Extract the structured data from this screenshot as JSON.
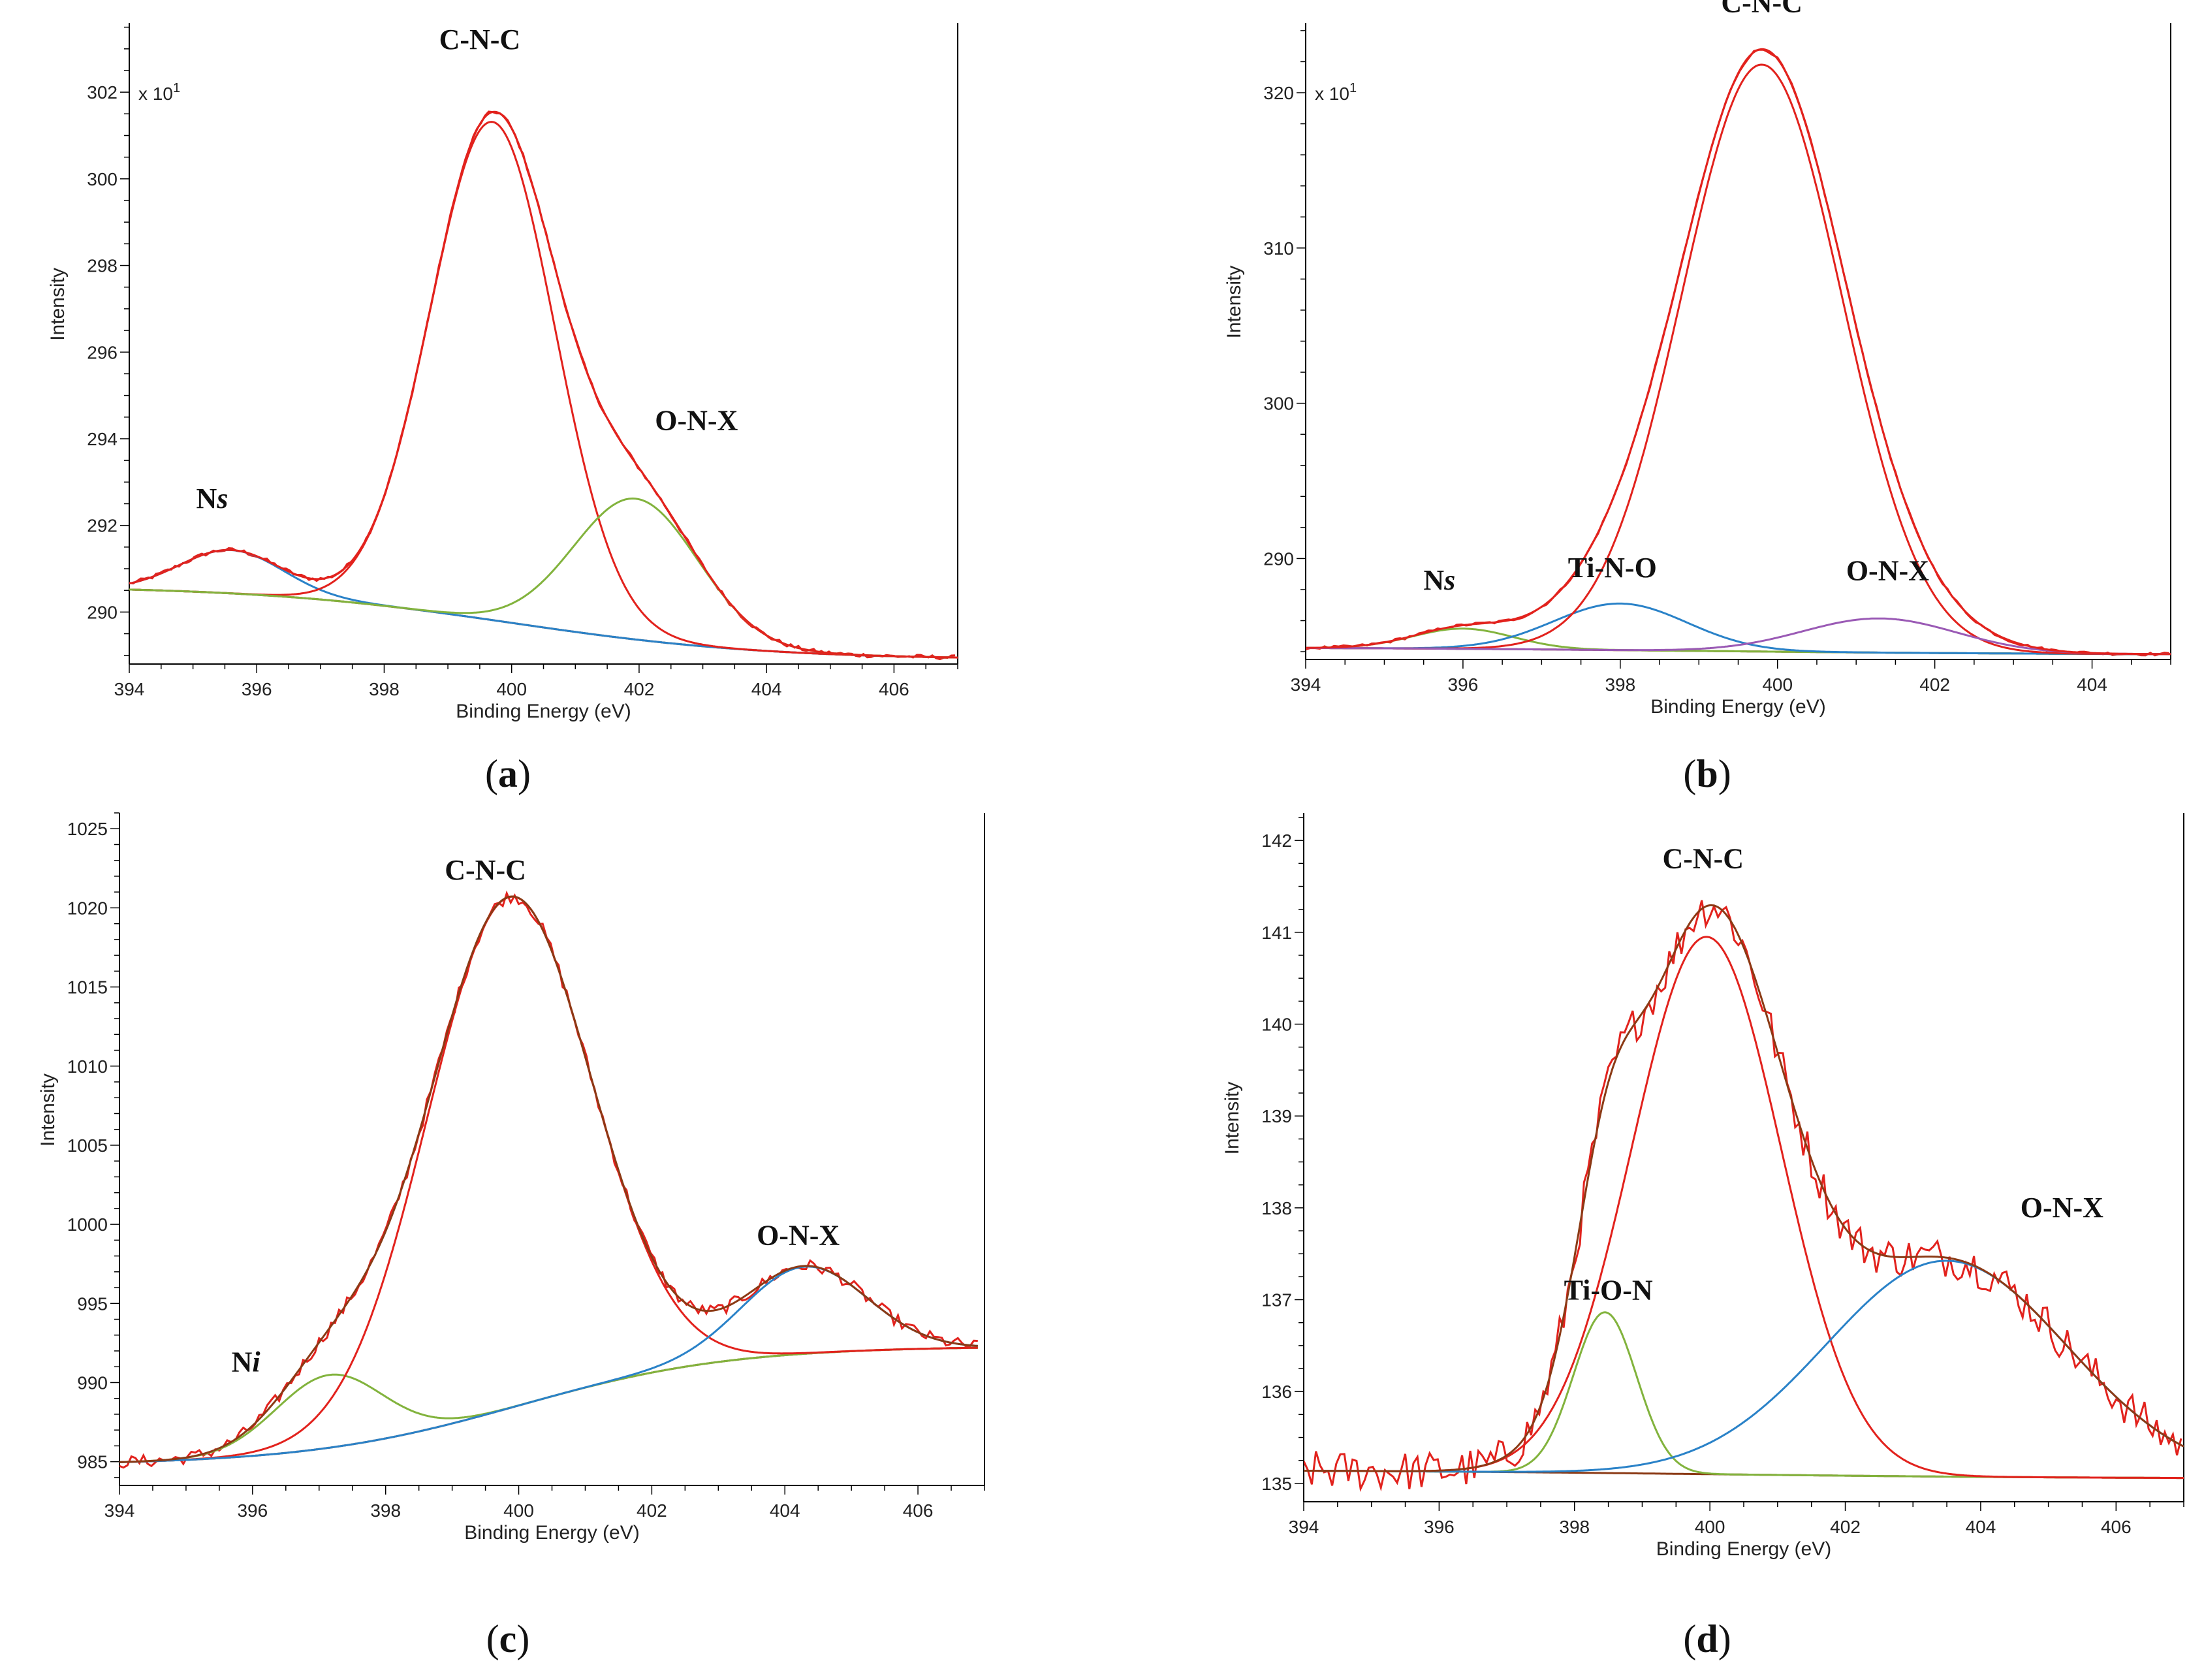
{
  "chart_data": [
    {
      "type": "line",
      "panel": "a",
      "xlabel": "Binding Energy (eV)",
      "ylabel": "Intensity",
      "multiplier": "x 10",
      "multiplier_exp": "1",
      "xlim": [
        394,
        407
      ],
      "ylim": [
        288.8,
        303.6
      ],
      "xticks": [
        394,
        396,
        398,
        400,
        402,
        404,
        406
      ],
      "yticks": [
        290,
        292,
        294,
        296,
        298,
        300,
        302
      ],
      "x_reversed": false,
      "labels": [
        {
          "parts": [
            {
              "t": "C-N-C"
            }
          ],
          "x": 399.5,
          "y": 303.0
        },
        {
          "parts": [
            {
              "t": "O-N-X"
            }
          ],
          "x": 402.9,
          "y": 294.2
        },
        {
          "parts": [
            {
              "t": "N"
            },
            {
              "t": "s",
              "i": true
            }
          ],
          "x": 395.3,
          "y": 292.4
        }
      ],
      "background": {
        "start": 290.6,
        "end": 288.9,
        "center": 400,
        "width": 2.0
      },
      "components": [
        {
          "name": "Ns",
          "color": "#2a82c8",
          "center": 395.6,
          "height": 1.0,
          "fwhm": 1.9
        },
        {
          "name": "C-N-C",
          "color": "#e2221d",
          "center": 399.7,
          "height": 11.5,
          "fwhm": 2.3
        },
        {
          "name": "O-N-X",
          "color": "#82b33d",
          "center": 401.95,
          "height": 3.25,
          "fwhm": 2.3
        }
      ],
      "envelope_color": "#e2221d",
      "raw_color": "#e2221d",
      "noise": 0.05
    },
    {
      "type": "line",
      "panel": "b",
      "xlabel": "Binding Energy (eV)",
      "ylabel": "Intensity",
      "multiplier": "x 10",
      "multiplier_exp": "1",
      "xlim": [
        394,
        405
      ],
      "ylim": [
        283.5,
        324.5
      ],
      "xticks": [
        394,
        396,
        398,
        400,
        402,
        404
      ],
      "yticks": [
        290,
        300,
        310,
        320
      ],
      "x_reversed": false,
      "labels": [
        {
          "parts": [
            {
              "t": "C-N-C"
            }
          ],
          "x": 399.8,
          "y": 325.2
        },
        {
          "parts": [
            {
              "t": "Ti-N-O"
            }
          ],
          "x": 397.9,
          "y": 288.8
        },
        {
          "parts": [
            {
              "t": "N"
            },
            {
              "t": "s",
              "i": true
            }
          ],
          "x": 395.7,
          "y": 288.0
        },
        {
          "parts": [
            {
              "t": "O-N-X"
            }
          ],
          "x": 401.4,
          "y": 288.6
        }
      ],
      "background": {
        "start": 284.3,
        "end": 283.8,
        "center": 399,
        "width": 2.5
      },
      "components": [
        {
          "name": "Ns",
          "color": "#82b33d",
          "center": 396.0,
          "height": 1.3,
          "fwhm": 1.5
        },
        {
          "name": "Ti-N-O",
          "color": "#2a82c8",
          "center": 398.0,
          "height": 3.0,
          "fwhm": 2.0
        },
        {
          "name": "C-N-C",
          "color": "#e2221d",
          "center": 399.8,
          "height": 37.8,
          "fwhm": 2.4
        },
        {
          "name": "O-N-X",
          "color": "#9a5ab5",
          "center": 401.3,
          "height": 2.2,
          "fwhm": 2.3
        }
      ],
      "envelope_color": "#e2221d",
      "raw_color": "#e2221d",
      "noise": 0.1
    },
    {
      "type": "line",
      "panel": "c",
      "xlabel": "Binding Energy (eV)",
      "ylabel": "Intensity",
      "multiplier": "",
      "multiplier_exp": "",
      "xlim": [
        394,
        407
      ],
      "ylim": [
        983.5,
        1026
      ],
      "xticks": [
        394,
        396,
        398,
        400,
        402,
        404,
        406
      ],
      "yticks": [
        985,
        990,
        995,
        1000,
        1005,
        1010,
        1015,
        1020,
        1025
      ],
      "x_reversed": false,
      "labels": [
        {
          "parts": [
            {
              "t": "C-N-C"
            }
          ],
          "x": 399.5,
          "y": 1021.8
        },
        {
          "parts": [
            {
              "t": "O-N-X"
            }
          ],
          "x": 404.2,
          "y": 998.7
        },
        {
          "parts": [
            {
              "t": "N"
            },
            {
              "t": "i",
              "i": true
            }
          ],
          "x": 395.9,
          "y": 990.7
        }
      ],
      "background": {
        "start": 984.8,
        "end": 992.3,
        "center": 400,
        "width": 1.6
      },
      "components": [
        {
          "name": "Ni",
          "color": "#82b33d",
          "center": 397.15,
          "height": 4.6,
          "fwhm": 1.9
        },
        {
          "name": "C-N-C",
          "color": "#e2221d",
          "center": 399.85,
          "height": 32.3,
          "fwhm": 2.9
        },
        {
          "name": "O-N-X",
          "color": "#2a82c8",
          "center": 404.3,
          "height": 5.5,
          "fwhm": 2.2
        }
      ],
      "envelope_color": "#8b3a15",
      "raw_color": "#e2221d",
      "noise": 0.4
    },
    {
      "type": "line",
      "panel": "d",
      "xlabel": "Binding Energy (eV)",
      "ylabel": "Intensity",
      "multiplier": "",
      "multiplier_exp": "",
      "xlim": [
        394,
        407
      ],
      "ylim": [
        134.8,
        142.3
      ],
      "xticks": [
        394,
        396,
        398,
        400,
        402,
        404,
        406
      ],
      "yticks": [
        135,
        136,
        137,
        138,
        139,
        140,
        141,
        142
      ],
      "x_reversed": false,
      "labels": [
        {
          "parts": [
            {
              "t": "C-N-C"
            }
          ],
          "x": 399.9,
          "y": 141.7
        },
        {
          "parts": [
            {
              "t": "Ti-O-N"
            }
          ],
          "x": 398.5,
          "y": 137.0
        },
        {
          "parts": [
            {
              "t": "O-N-X"
            }
          ],
          "x": 405.2,
          "y": 137.9
        }
      ],
      "background": {
        "start": 135.15,
        "end": 135.05,
        "center": 400,
        "width": 3.0
      },
      "components": [
        {
          "name": "Ti-O-N",
          "color": "#82b33d",
          "center": 398.45,
          "height": 1.75,
          "fwhm": 1.1
        },
        {
          "name": "C-N-C",
          "color": "#e2221d",
          "center": 399.95,
          "height": 5.85,
          "fwhm": 2.6
        },
        {
          "name": "O-N-X",
          "color": "#2a82c8",
          "center": 403.5,
          "height": 2.35,
          "fwhm": 4.2
        }
      ],
      "envelope_color": "#8b3a15",
      "raw_color": "#e2221d",
      "noise": 0.22
    }
  ]
}
